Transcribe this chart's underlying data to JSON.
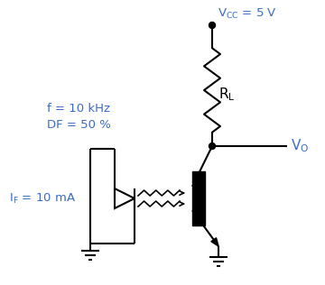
{
  "bg_color": "#ffffff",
  "text_color": "#000000",
  "blue_color": "#3a6bc8",
  "vcc_text": "V",
  "vcc_sub": "CC",
  "vcc_val": " = 5 V",
  "rl_text": "R",
  "rl_sub": "L",
  "vo_text": "V",
  "vo_sub": "O",
  "freq_text": "f = 10 kHz",
  "df_text": "DF = 50 %",
  "if_text": "I",
  "if_sub": "F",
  "if_val": " = 10 mA"
}
